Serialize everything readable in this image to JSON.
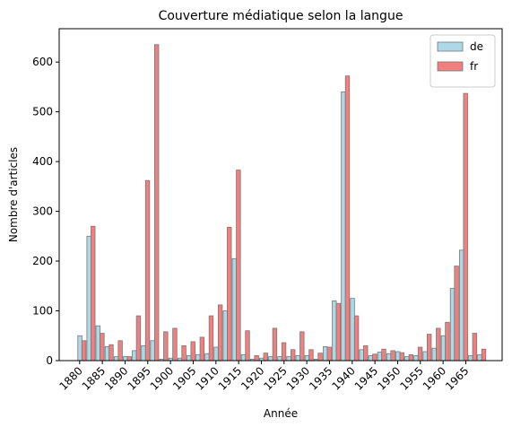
{
  "chart_data": {
    "type": "bar",
    "title": "Couverture médiatique selon la langue",
    "xlabel": "Année",
    "ylabel": "Nombre d'articles",
    "x": [
      1880,
      1882,
      1884,
      1886,
      1888,
      1890,
      1892,
      1894,
      1896,
      1898,
      1900,
      1902,
      1904,
      1906,
      1908,
      1910,
      1912,
      1914,
      1916,
      1918,
      1920,
      1922,
      1924,
      1926,
      1928,
      1930,
      1932,
      1934,
      1936,
      1938,
      1940,
      1942,
      1944,
      1946,
      1948,
      1950,
      1952,
      1954,
      1956,
      1958,
      1960,
      1962,
      1964,
      1966,
      1968
    ],
    "series": [
      {
        "name": "de",
        "color": "#add8e6",
        "values": [
          50,
          250,
          70,
          28,
          8,
          8,
          20,
          30,
          40,
          3,
          5,
          5,
          10,
          12,
          14,
          27,
          100,
          205,
          12,
          3,
          5,
          8,
          8,
          8,
          10,
          10,
          3,
          28,
          120,
          540,
          125,
          22,
          10,
          17,
          14,
          18,
          8,
          10,
          18,
          25,
          50,
          145,
          222,
          10,
          12
        ]
      },
      {
        "name": "fr",
        "color": "#f08080",
        "values": [
          40,
          270,
          55,
          32,
          40,
          8,
          90,
          362,
          635,
          58,
          65,
          30,
          38,
          47,
          90,
          112,
          268,
          383,
          60,
          10,
          15,
          65,
          36,
          22,
          58,
          22,
          15,
          27,
          115,
          572,
          90,
          30,
          13,
          23,
          20,
          16,
          12,
          27,
          53,
          65,
          77,
          190,
          537,
          55,
          23
        ]
      }
    ],
    "xlim": [
      1875.5,
      1973
    ],
    "xticks": [
      1880,
      1885,
      1890,
      1895,
      1900,
      1905,
      1910,
      1915,
      1920,
      1925,
      1930,
      1935,
      1940,
      1945,
      1950,
      1955,
      1960,
      1965
    ],
    "ylim": [
      0,
      667
    ],
    "yticks": [
      0,
      100,
      200,
      300,
      400,
      500,
      600
    ],
    "legend": "upper right"
  }
}
